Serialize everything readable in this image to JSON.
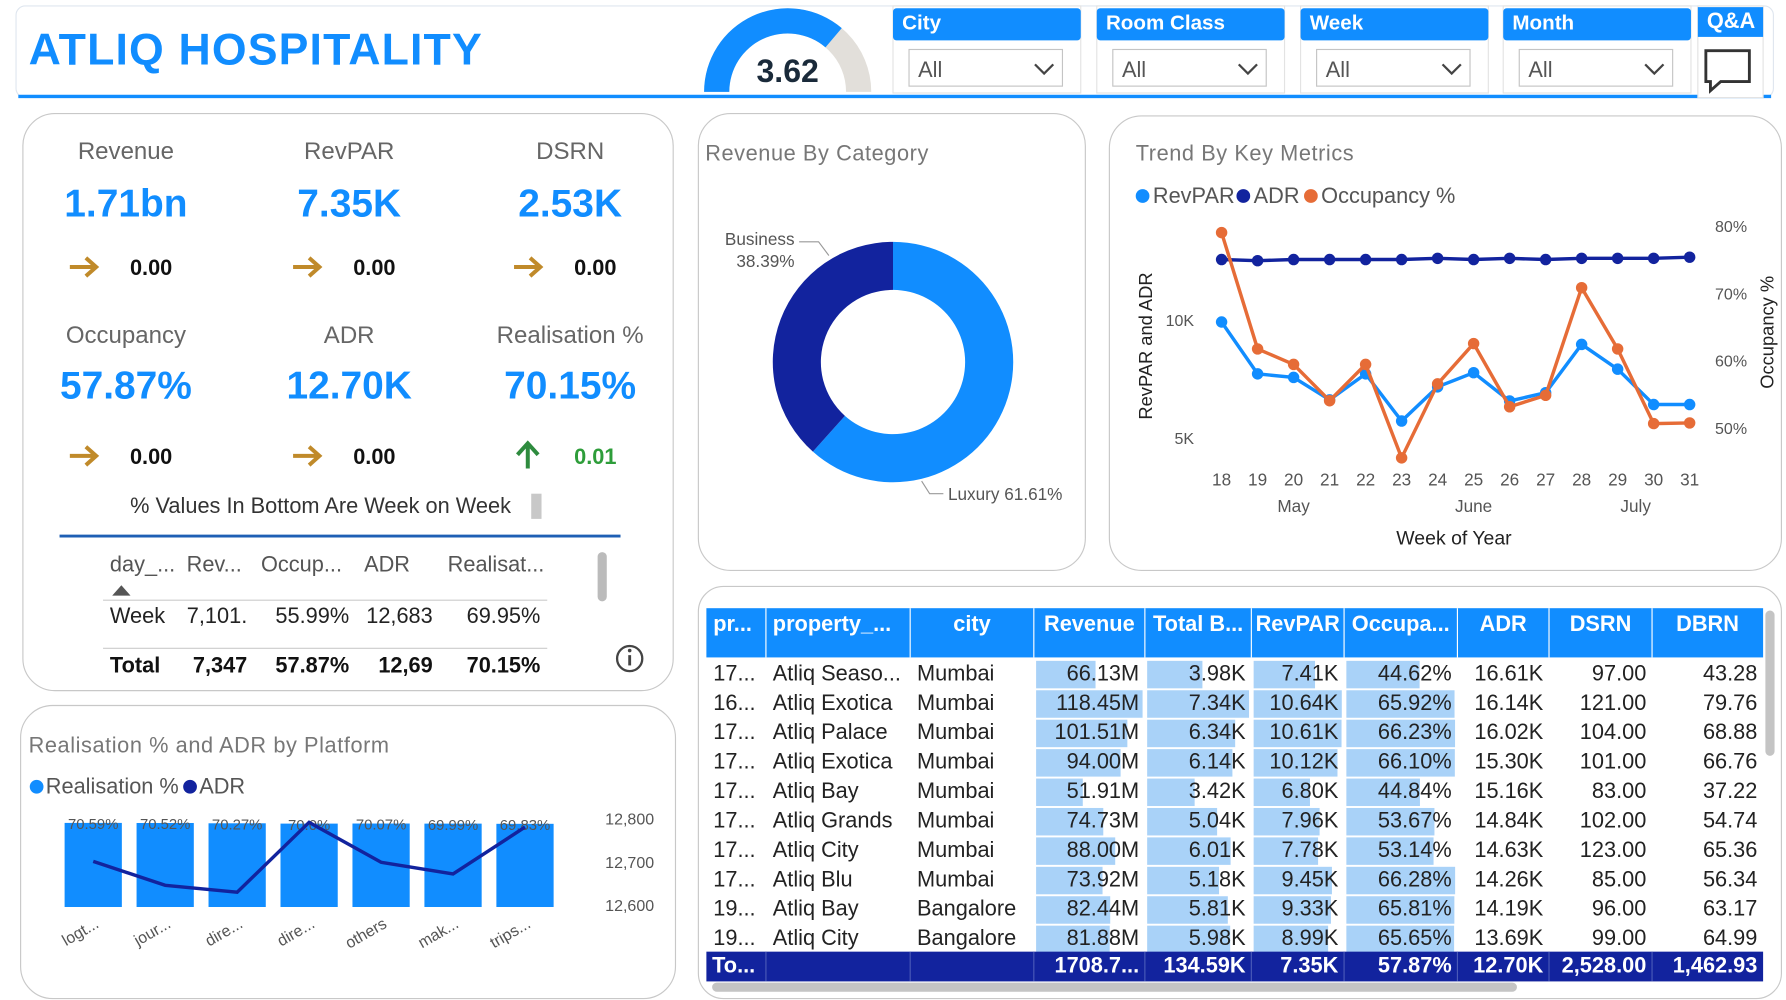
{
  "header": {
    "title": "ATLIQ HOSPITALITY"
  },
  "filters": [
    {
      "label": "City",
      "value": "All"
    },
    {
      "label": "Room Class",
      "value": "All"
    },
    {
      "label": "Week",
      "value": "All"
    },
    {
      "label": "Month",
      "value": "All"
    }
  ],
  "qa": "Q&A",
  "kpis": [
    {
      "label": "Revenue",
      "value": "1.71bn",
      "change": "0.00"
    },
    {
      "label": "RevPAR",
      "value": "7.35K",
      "change": "0.00"
    },
    {
      "label": "DSRN",
      "value": "2.53K",
      "change": "0.00"
    },
    {
      "label": "Occupancy",
      "value": "57.87%",
      "change": "0.00"
    },
    {
      "label": "ADR",
      "value": "12.70K",
      "change": "0.00"
    },
    {
      "label": "Realisation %",
      "value": "70.15%",
      "change": "0.01"
    }
  ],
  "kpi_note": "% Values In Bottom Are Week on Week",
  "mini_table": {
    "columns": [
      "day_...",
      "Rev...",
      "Occup...",
      "ADR",
      "Realisat..."
    ],
    "rows": [
      [
        "Week",
        "7,101.",
        "55.99%",
        "12,683",
        "69.95%"
      ]
    ],
    "total": [
      "Total",
      "7,347",
      "57.87%",
      "12,69",
      "70.15%"
    ]
  },
  "table": {
    "columns": [
      "pr...",
      "property_...",
      "city",
      "Revenue",
      "Total B...",
      "RevPAR",
      "Occupa...",
      "ADR",
      "DSRN",
      "DBRN"
    ],
    "rows": [
      [
        "17...",
        "Atliq Seaso...",
        "Mumbai",
        "66.13M",
        "3.98K",
        "7.41K",
        "44.62%",
        "16.61K",
        "97.00",
        "43.28"
      ],
      [
        "16...",
        "Atliq Exotica",
        "Mumbai",
        "118.45M",
        "7.34K",
        "10.64K",
        "65.92%",
        "16.14K",
        "121.00",
        "79.76"
      ],
      [
        "17...",
        "Atliq Palace",
        "Mumbai",
        "101.51M",
        "6.34K",
        "10.61K",
        "66.23%",
        "16.02K",
        "104.00",
        "68.88"
      ],
      [
        "17...",
        "Atliq Exotica",
        "Mumbai",
        "94.00M",
        "6.14K",
        "10.12K",
        "66.10%",
        "15.30K",
        "101.00",
        "66.76"
      ],
      [
        "17...",
        "Atliq Bay",
        "Mumbai",
        "51.91M",
        "3.42K",
        "6.80K",
        "44.84%",
        "15.16K",
        "83.00",
        "37.22"
      ],
      [
        "17...",
        "Atliq Grands",
        "Mumbai",
        "74.73M",
        "5.04K",
        "7.96K",
        "53.67%",
        "14.84K",
        "102.00",
        "54.74"
      ],
      [
        "17...",
        "Atliq City",
        "Mumbai",
        "88.00M",
        "6.01K",
        "7.78K",
        "53.14%",
        "14.63K",
        "123.00",
        "65.36"
      ],
      [
        "17...",
        "Atliq Blu",
        "Mumbai",
        "73.92M",
        "5.18K",
        "9.45K",
        "66.28%",
        "14.26K",
        "85.00",
        "56.34"
      ],
      [
        "19...",
        "Atliq Bay",
        "Bangalore",
        "82.44M",
        "5.81K",
        "9.33K",
        "65.81%",
        "14.19K",
        "96.00",
        "63.17"
      ],
      [
        "19...",
        "Atliq City",
        "Bangalore",
        "81.88M",
        "5.98K",
        "8.99K",
        "65.65%",
        "13.69K",
        "99.00",
        "64.99"
      ]
    ],
    "total": {
      "label": "To...",
      "cells": [
        "1708.7...",
        "134.59K",
        "7.35K",
        "57.87%",
        "12.70K",
        "2,528.00",
        "1,462.93"
      ]
    },
    "data_bar_columns": [
      3,
      4,
      5,
      6
    ]
  },
  "chart_data": [
    {
      "type": "gauge",
      "value": 3.62,
      "ylim": [
        0,
        5
      ],
      "color": "#118dff"
    },
    {
      "type": "donut",
      "title": "Revenue By Category",
      "categories": [
        "Luxury",
        "Business"
      ],
      "values": [
        61.61,
        38.39
      ],
      "value_labels": [
        "61.61%",
        "38.39%"
      ],
      "colors": [
        "#118dff",
        "#12239e"
      ]
    },
    {
      "type": "line",
      "title": "Trend By Key Metrics",
      "x": [
        18,
        19,
        20,
        21,
        22,
        23,
        24,
        25,
        26,
        27,
        28,
        29,
        30,
        31
      ],
      "xlim": [
        17.3,
        31.45
      ],
      "xticks": [
        18,
        19,
        20,
        21,
        22,
        23,
        24,
        25,
        26,
        27,
        28,
        29,
        30,
        31
      ],
      "month_groups": [
        {
          "label": "May",
          "weeks": [
            18,
            22
          ]
        },
        {
          "label": "June",
          "weeks": [
            23,
            27
          ]
        },
        {
          "label": "July",
          "weeks": [
            28,
            31
          ]
        }
      ],
      "x_label": "Week of Year",
      "y_label": "RevPAR and ADR",
      "y2_label": "Occupancy %",
      "ylim": [
        3980,
        14420
      ],
      "yticks": [
        {
          "value": 5000,
          "label": "5K"
        },
        {
          "value": 10000,
          "label": "10K"
        }
      ],
      "y2lim": [
        44.9,
        81.5
      ],
      "y2ticks": [
        {
          "value": 50,
          "label": "50%"
        },
        {
          "value": 60,
          "label": "60%"
        },
        {
          "value": 70,
          "label": "70%"
        },
        {
          "value": 80,
          "label": "80%"
        }
      ],
      "series": [
        {
          "name": "RevPAR",
          "color": "#118dff",
          "values": [
            10000,
            7800,
            7650,
            6700,
            7800,
            5800,
            7250,
            7850,
            6650,
            7000,
            9050,
            8000,
            6500,
            6500
          ]
        },
        {
          "name": "ADR",
          "color": "#12239e",
          "values": [
            12650,
            12600,
            12650,
            12650,
            12650,
            12650,
            12700,
            12650,
            12700,
            12650,
            12700,
            12700,
            12700,
            12750
          ]
        },
        {
          "name": "Occupancy %",
          "color": "#e66c37",
          "axis": "y2",
          "values": [
            79.3,
            62,
            59.7,
            54.3,
            59.7,
            45.8,
            56.8,
            62.8,
            53.4,
            55.1,
            71.1,
            62,
            50.9,
            51
          ]
        }
      ]
    },
    {
      "type": "combo",
      "title": "Realisation % and ADR by Platform",
      "categories": [
        "logt...",
        "jour...",
        "dire...",
        "dire...",
        "others",
        "mak...",
        "trips..."
      ],
      "ylim": [
        0,
        74
      ],
      "y2lim": [
        12600,
        12803
      ],
      "y2ticks": [
        {
          "value": 12600,
          "label": "12,600"
        },
        {
          "value": 12700,
          "label": "12,700"
        },
        {
          "value": 12800,
          "label": "12,800"
        }
      ],
      "series": [
        {
          "name": "Realisation %",
          "color": "#118dff",
          "values": [
            70.59,
            70.52,
            70.27,
            70.0,
            70.07,
            69.99,
            69.83
          ],
          "value_labels": [
            "70.59%",
            "70.52%",
            "70.27%",
            "70.0%",
            "70.07%",
            "69.99%",
            "69.83%"
          ]
        },
        {
          "name": "ADR",
          "color": "#12239e",
          "axis": "y2",
          "values": [
            12705,
            12650,
            12634,
            12795,
            12703,
            12676,
            12784
          ]
        }
      ]
    }
  ]
}
